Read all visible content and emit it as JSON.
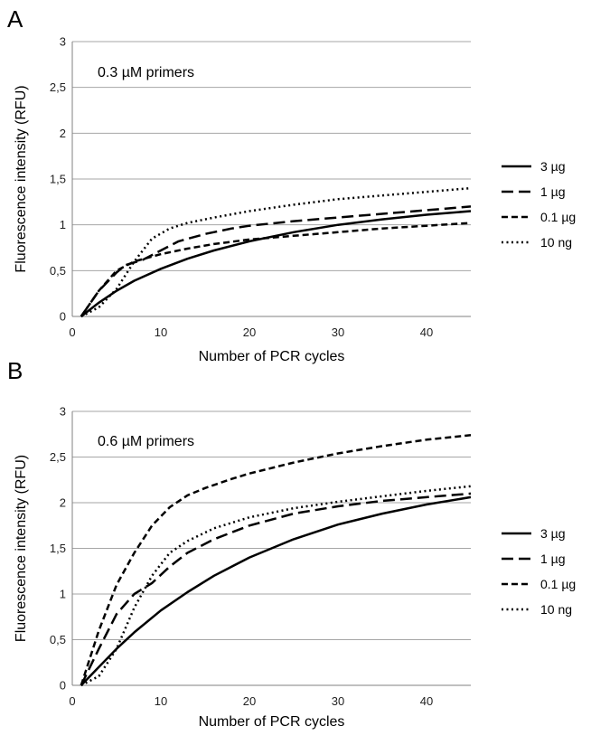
{
  "chart_data": [
    {
      "type": "line",
      "panel_label": "A",
      "annotation": "0.3 µM primers",
      "xlabel": "Number of PCR cycles",
      "ylabel": "Fluorescence intensity (RFU)",
      "xlim": [
        0,
        45
      ],
      "ylim": [
        0,
        3
      ],
      "x_ticks": [
        "0",
        "10",
        "20",
        "30",
        "40"
      ],
      "y_ticks": [
        "0",
        "0,5",
        "1",
        "1,5",
        "2",
        "2,5",
        "3"
      ],
      "grid": true,
      "legend_position": "right",
      "series": [
        {
          "name": "3 µg",
          "dash": "solid",
          "x": [
            1,
            3,
            5,
            7,
            10,
            13,
            16,
            20,
            25,
            30,
            35,
            40,
            45
          ],
          "y": [
            0,
            0.15,
            0.28,
            0.39,
            0.52,
            0.63,
            0.72,
            0.82,
            0.92,
            1.0,
            1.06,
            1.11,
            1.15
          ]
        },
        {
          "name": "1 µg",
          "dash": "longdash",
          "x": [
            1,
            3,
            5,
            6,
            8,
            10,
            12,
            15,
            18,
            20,
            25,
            30,
            35,
            40,
            45
          ],
          "y": [
            0,
            0.28,
            0.48,
            0.56,
            0.62,
            0.72,
            0.82,
            0.9,
            0.96,
            0.99,
            1.04,
            1.08,
            1.12,
            1.16,
            1.2
          ]
        },
        {
          "name": "0.1 µg",
          "dash": "shortdash",
          "x": [
            1,
            3,
            5,
            7,
            10,
            13,
            16,
            20,
            25,
            30,
            35,
            40,
            45
          ],
          "y": [
            0,
            0.28,
            0.5,
            0.6,
            0.68,
            0.74,
            0.79,
            0.84,
            0.88,
            0.92,
            0.96,
            0.99,
            1.02
          ]
        },
        {
          "name": "10 ng",
          "dash": "dotted",
          "x": [
            1,
            3,
            5,
            7,
            9,
            11,
            13,
            16,
            20,
            25,
            30,
            35,
            40,
            45
          ],
          "y": [
            0,
            0.1,
            0.3,
            0.6,
            0.85,
            0.96,
            1.02,
            1.08,
            1.15,
            1.22,
            1.28,
            1.32,
            1.36,
            1.4
          ]
        }
      ]
    },
    {
      "type": "line",
      "panel_label": "B",
      "annotation": "0.6 µM primers",
      "xlabel": "Number of PCR cycles",
      "ylabel": "Fluorescence intensity (RFU)",
      "xlim": [
        0,
        45
      ],
      "ylim": [
        0,
        3
      ],
      "x_ticks": [
        "0",
        "10",
        "20",
        "30",
        "40"
      ],
      "y_ticks": [
        "0",
        "0,5",
        "1",
        "1,5",
        "2",
        "2,5",
        "3"
      ],
      "grid": true,
      "legend_position": "right",
      "series": [
        {
          "name": "3 µg",
          "dash": "solid",
          "x": [
            1,
            3,
            5,
            7,
            10,
            13,
            16,
            20,
            25,
            30,
            35,
            40,
            45
          ],
          "y": [
            0,
            0.2,
            0.4,
            0.58,
            0.82,
            1.02,
            1.2,
            1.4,
            1.6,
            1.76,
            1.88,
            1.98,
            2.06
          ]
        },
        {
          "name": "1 µg",
          "dash": "longdash",
          "x": [
            1,
            3,
            5,
            7,
            9,
            11,
            13,
            16,
            20,
            25,
            30,
            35,
            40,
            45
          ],
          "y": [
            0,
            0.4,
            0.78,
            1.0,
            1.12,
            1.3,
            1.45,
            1.6,
            1.75,
            1.88,
            1.96,
            2.02,
            2.06,
            2.1
          ]
        },
        {
          "name": "0.1 µg",
          "dash": "shortdash",
          "x": [
            1,
            3,
            5,
            7,
            9,
            11,
            13,
            15,
            18,
            20,
            25,
            30,
            35,
            40,
            45
          ],
          "y": [
            0,
            0.6,
            1.1,
            1.45,
            1.75,
            1.95,
            2.08,
            2.16,
            2.26,
            2.32,
            2.44,
            2.54,
            2.62,
            2.69,
            2.74
          ]
        },
        {
          "name": "10 ng",
          "dash": "dotted",
          "x": [
            1,
            3,
            5,
            7,
            9,
            11,
            13,
            16,
            20,
            25,
            30,
            35,
            40,
            45
          ],
          "y": [
            0,
            0.1,
            0.4,
            0.85,
            1.2,
            1.45,
            1.58,
            1.72,
            1.84,
            1.94,
            2.01,
            2.07,
            2.13,
            2.18
          ]
        }
      ]
    }
  ]
}
